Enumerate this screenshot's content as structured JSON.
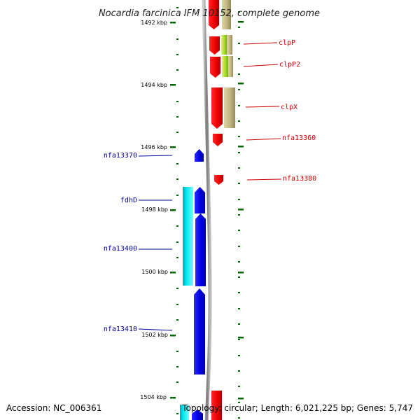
{
  "title": "Nocardia farcinica IFM 10152, complete genome",
  "footer": {
    "accession": "Accession: NC_006361",
    "info": "Topology: circular; Length: 6,021,225 bp; Genes: 5,747"
  },
  "scale": {
    "unit": "kbp",
    "major_ticks": [
      "1492 kbp",
      "1494 kbp",
      "1496 kbp",
      "1498 kbp",
      "1500 kbp",
      "1502 kbp",
      "1504 kbp"
    ]
  },
  "gene_labels": {
    "forward": [
      "clpP",
      "clpP2",
      "clpX",
      "nfa13360",
      "nfa13380"
    ],
    "reverse": [
      "nfa13370",
      "fdhD",
      "nfa13400",
      "nfa13410"
    ]
  },
  "colors": {
    "forward_gene": "#ff0000",
    "reverse_gene": "#0000ee",
    "forward_homolog": "#c8bc88",
    "forward_homolog_bright": "#a8e030",
    "reverse_homolog": "#00e8f0",
    "forward_label": "#cc0000",
    "reverse_label": "#000099",
    "tick": "#006600",
    "backbone": "#888888"
  }
}
